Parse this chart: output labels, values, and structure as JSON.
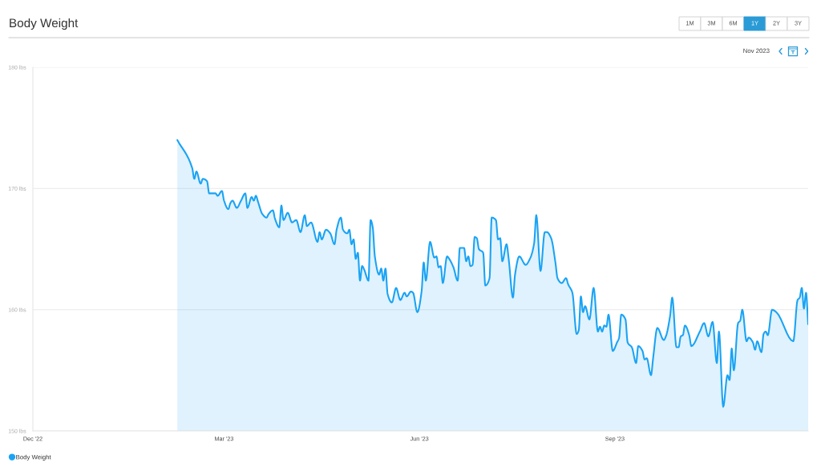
{
  "chart_data": {
    "type": "area",
    "title": "Body Weight",
    "subtitle": "Nov 2023",
    "annotations": [
      "1M",
      "3M",
      "6M",
      "1Y",
      "2Y",
      "3Y"
    ],
    "x": [
      "2023-02-07",
      "2023-02-14",
      "2023-02-15",
      "2023-02-16",
      "2023-02-18",
      "2023-02-19",
      "2023-02-21",
      "2023-02-22",
      "2023-02-25",
      "2023-02-26",
      "2023-02-28",
      "2023-03-01",
      "2023-03-03",
      "2023-03-04",
      "2023-03-05",
      "2023-03-07",
      "2023-03-09",
      "2023-03-11",
      "2023-03-12",
      "2023-03-14",
      "2023-03-15",
      "2023-03-16",
      "2023-03-17",
      "2023-03-19",
      "2023-03-21",
      "2023-03-22",
      "2023-03-24",
      "2023-03-25",
      "2023-03-27",
      "2023-03-28",
      "2023-03-29",
      "2023-03-31",
      "2023-04-02",
      "2023-04-04",
      "2023-04-06",
      "2023-04-08",
      "2023-04-09",
      "2023-04-11",
      "2023-04-14",
      "2023-04-15",
      "2023-04-16",
      "2023-04-18",
      "2023-04-20",
      "2023-04-22",
      "2023-04-23",
      "2023-04-25",
      "2023-04-26",
      "2023-04-28",
      "2023-04-29",
      "2023-04-30",
      "2023-05-01",
      "2023-05-02",
      "2023-05-03",
      "2023-05-04",
      "2023-05-05",
      "2023-05-06",
      "2023-05-08",
      "2023-05-09",
      "2023-05-10",
      "2023-05-11",
      "2023-05-13",
      "2023-05-14",
      "2023-05-15",
      "2023-05-16",
      "2023-05-17",
      "2023-05-19",
      "2023-05-21",
      "2023-05-23",
      "2023-05-25",
      "2023-05-26",
      "2023-05-28",
      "2023-05-29",
      "2023-05-31",
      "2023-06-02",
      "2023-06-03",
      "2023-06-04",
      "2023-06-06",
      "2023-06-08",
      "2023-06-09",
      "2023-06-10",
      "2023-06-11",
      "2023-06-12",
      "2023-06-14",
      "2023-06-15",
      "2023-06-17",
      "2023-06-19",
      "2023-06-20",
      "2023-06-22",
      "2023-06-23",
      "2023-06-24",
      "2023-06-25",
      "2023-06-26",
      "2023-06-27",
      "2023-06-28",
      "2023-06-29",
      "2023-07-01",
      "2023-07-02",
      "2023-07-04",
      "2023-07-05",
      "2023-07-07",
      "2023-07-08",
      "2023-07-09",
      "2023-07-10",
      "2023-07-12",
      "2023-07-13",
      "2023-07-15",
      "2023-07-16",
      "2023-07-18",
      "2023-07-21",
      "2023-07-23",
      "2023-07-25",
      "2023-07-26",
      "2023-07-28",
      "2023-07-30",
      "2023-07-31",
      "2023-08-02",
      "2023-08-04",
      "2023-08-05",
      "2023-08-07",
      "2023-08-09",
      "2023-08-10",
      "2023-08-12",
      "2023-08-14",
      "2023-08-15",
      "2023-08-16",
      "2023-08-17",
      "2023-08-18",
      "2023-08-20",
      "2023-08-22",
      "2023-08-24",
      "2023-08-25",
      "2023-08-26",
      "2023-08-27",
      "2023-08-28",
      "2023-08-29",
      "2023-08-31",
      "2023-09-02",
      "2023-09-03",
      "2023-09-04",
      "2023-09-06",
      "2023-09-07",
      "2023-09-09",
      "2023-09-11",
      "2023-09-12",
      "2023-09-14",
      "2023-09-15",
      "2023-09-16",
      "2023-09-18",
      "2023-09-19",
      "2023-09-21",
      "2023-09-24",
      "2023-09-25",
      "2023-09-27",
      "2023-09-28",
      "2023-09-30",
      "2023-10-01",
      "2023-10-02",
      "2023-10-03",
      "2023-10-04",
      "2023-10-06",
      "2023-10-07",
      "2023-10-11",
      "2023-10-13",
      "2023-10-15",
      "2023-10-17",
      "2023-10-19",
      "2023-10-20",
      "2023-10-22",
      "2023-10-24",
      "2023-10-25",
      "2023-10-26",
      "2023-10-27",
      "2023-10-29",
      "2023-10-30",
      "2023-10-31",
      "2023-11-02",
      "2023-11-03",
      "2023-11-05",
      "2023-11-06",
      "2023-11-07",
      "2023-11-09",
      "2023-11-10",
      "2023-11-11",
      "2023-11-12",
      "2023-11-14",
      "2023-11-16",
      "2023-11-24",
      "2023-11-26",
      "2023-11-27",
      "2023-11-28",
      "2023-11-29",
      "2023-11-30",
      "2023-12-01"
    ],
    "series": [
      {
        "name": "Body Weight",
        "color": "#1aa3f4",
        "values": [
          174.0,
          171.7,
          170.8,
          171.4,
          170.4,
          170.8,
          170.6,
          169.6,
          169.6,
          169.4,
          169.8,
          169.0,
          168.3,
          168.8,
          169.0,
          168.4,
          169.0,
          169.6,
          168.4,
          169.3,
          169.0,
          169.4,
          168.9,
          167.9,
          167.6,
          167.9,
          168.2,
          167.5,
          166.8,
          168.6,
          167.4,
          168.0,
          167.2,
          167.4,
          166.4,
          167.8,
          166.9,
          167.2,
          165.6,
          166.4,
          165.8,
          166.6,
          166.3,
          165.4,
          166.6,
          167.6,
          166.6,
          166.3,
          166.6,
          165.4,
          165.8,
          164.2,
          164.7,
          162.4,
          163.6,
          163.3,
          162.4,
          167.4,
          166.8,
          164.4,
          162.9,
          163.4,
          162.4,
          163.4,
          161.3,
          160.6,
          161.8,
          160.8,
          161.4,
          161.1,
          161.5,
          161.4,
          159.8,
          161.5,
          163.9,
          162.4,
          165.6,
          164.3,
          164.4,
          163.5,
          163.6,
          162.2,
          164.4,
          164.2,
          163.5,
          162.4,
          165.1,
          165.1,
          164.0,
          164.4,
          163.6,
          163.7,
          166.0,
          165.9,
          165.0,
          164.7,
          162.0,
          162.6,
          167.6,
          167.4,
          165.8,
          165.9,
          164.0,
          165.4,
          164.2,
          161.0,
          162.9,
          164.4,
          163.7,
          164.2,
          165.5,
          167.8,
          163.2,
          166.4,
          166.4,
          165.9,
          163.9,
          162.6,
          162.2,
          162.6,
          162.1,
          161.4,
          158.0,
          158.3,
          161.1,
          159.8,
          160.3,
          159.2,
          161.8,
          158.2,
          158.6,
          158.2,
          158.7,
          158.6,
          159.6,
          156.6,
          157.3,
          157.7,
          159.6,
          159.2,
          157.3,
          156.9,
          155.6,
          157.0,
          156.6,
          155.9,
          156.0,
          154.6,
          156.0,
          158.5,
          157.5,
          157.8,
          159.5,
          161.0,
          156.9,
          156.9,
          157.8,
          157.9,
          158.7,
          157.9,
          157.0,
          158.2,
          158.9,
          157.8,
          159.0,
          155.6,
          158.2,
          152.0,
          154.6,
          154.2,
          156.8,
          155.0,
          158.9,
          159.1,
          160.0,
          157.4,
          157.7,
          157.3,
          156.7,
          157.4,
          156.5,
          158.0,
          158.2,
          157.9,
          160.0,
          159.8,
          157.4,
          160.8,
          161.0,
          161.8,
          160.1,
          161.4,
          158.8
        ]
      }
    ],
    "xlim": [
      "2022-12-01",
      "2023-12-01"
    ],
    "xticks": [
      {
        "value": "2022-12-01",
        "label": "Dec '22"
      },
      {
        "value": "2023-03-01",
        "label": "Mar '23"
      },
      {
        "value": "2023-06-01",
        "label": "Jun '23"
      },
      {
        "value": "2023-09-01",
        "label": "Sep '23"
      }
    ],
    "ylim": [
      150,
      180
    ],
    "yticks": [
      {
        "value": 150,
        "label": "150 lbs"
      },
      {
        "value": 160,
        "label": "160 lbs"
      },
      {
        "value": 170,
        "label": "170 lbs"
      },
      {
        "value": 180,
        "label": "180 lbs"
      }
    ],
    "grid": "y",
    "legend": "bottom left"
  }
}
